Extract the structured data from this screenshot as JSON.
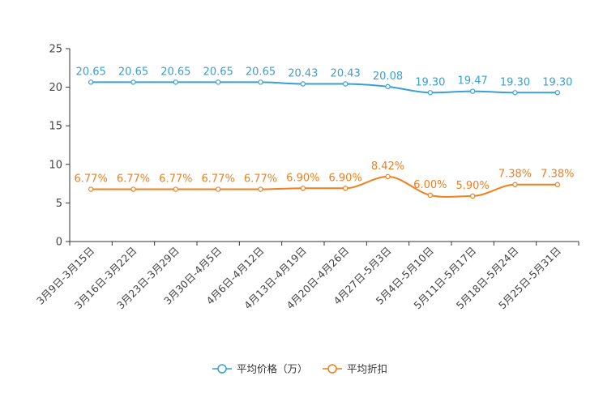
{
  "chart_data": {
    "type": "line",
    "categories": [
      "3月9日-3月15日",
      "3月16日-3月22日",
      "3月23日-3月29日",
      "3月30日-4月5日",
      "4月6日-4月12日",
      "4月13日-4月19日",
      "4月20日-4月26日",
      "4月27日-5月3日",
      "5月4日-5月10日",
      "5月11日-5月17日",
      "5月18日-5月24日",
      "5月25日-5月31日"
    ],
    "series": [
      {
        "name": "平均价格（万）",
        "color": "#3a9fd1",
        "values": [
          20.65,
          20.65,
          20.65,
          20.65,
          20.65,
          20.43,
          20.43,
          20.08,
          19.3,
          19.47,
          19.3,
          19.3
        ],
        "labels": [
          "20.65",
          "20.65",
          "20.65",
          "20.65",
          "20.65",
          "20.43",
          "20.43",
          "20.08",
          "19.30",
          "19.47",
          "19.30",
          "19.30"
        ]
      },
      {
        "name": "平均折扣",
        "color": "#f07f1c",
        "values": [
          6.77,
          6.77,
          6.77,
          6.77,
          6.77,
          6.9,
          6.9,
          8.42,
          6.0,
          5.9,
          7.38,
          7.38
        ],
        "labels": [
          "6.77%",
          "6.77%",
          "6.77%",
          "6.77%",
          "6.77%",
          "6.90%",
          "6.90%",
          "8.42%",
          "6.00%",
          "5.90%",
          "7.38%",
          "7.38%"
        ]
      }
    ],
    "yticks": [
      "0",
      "5",
      "10",
      "15",
      "20",
      "25"
    ],
    "ylim": [
      0,
      25
    ],
    "legend_position": "bottom-center"
  }
}
